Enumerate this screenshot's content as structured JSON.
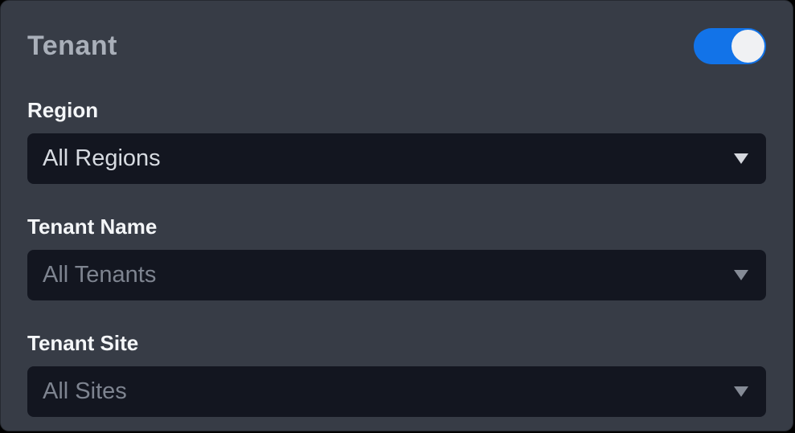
{
  "panel": {
    "title": "Tenant"
  },
  "toggle": {
    "name": "tenant-enabled-toggle",
    "on": true
  },
  "fields": [
    {
      "label": "Region",
      "value": "All Regions",
      "enabled": true
    },
    {
      "label": "Tenant Name",
      "value": "All Tenants",
      "enabled": false
    },
    {
      "label": "Tenant Site",
      "value": "All Sites",
      "enabled": false
    }
  ],
  "colors": {
    "panel_background": "#373c46",
    "page_background": "#000000",
    "dropdown_background": "#131620",
    "toggle_on": "#1273e8",
    "toggle_knob": "#f0f1f3",
    "title_text": "#a9afb9",
    "label_text": "#f4f6f8",
    "value_enabled_text": "#d7dbe1",
    "value_disabled_text": "#7e8490"
  }
}
